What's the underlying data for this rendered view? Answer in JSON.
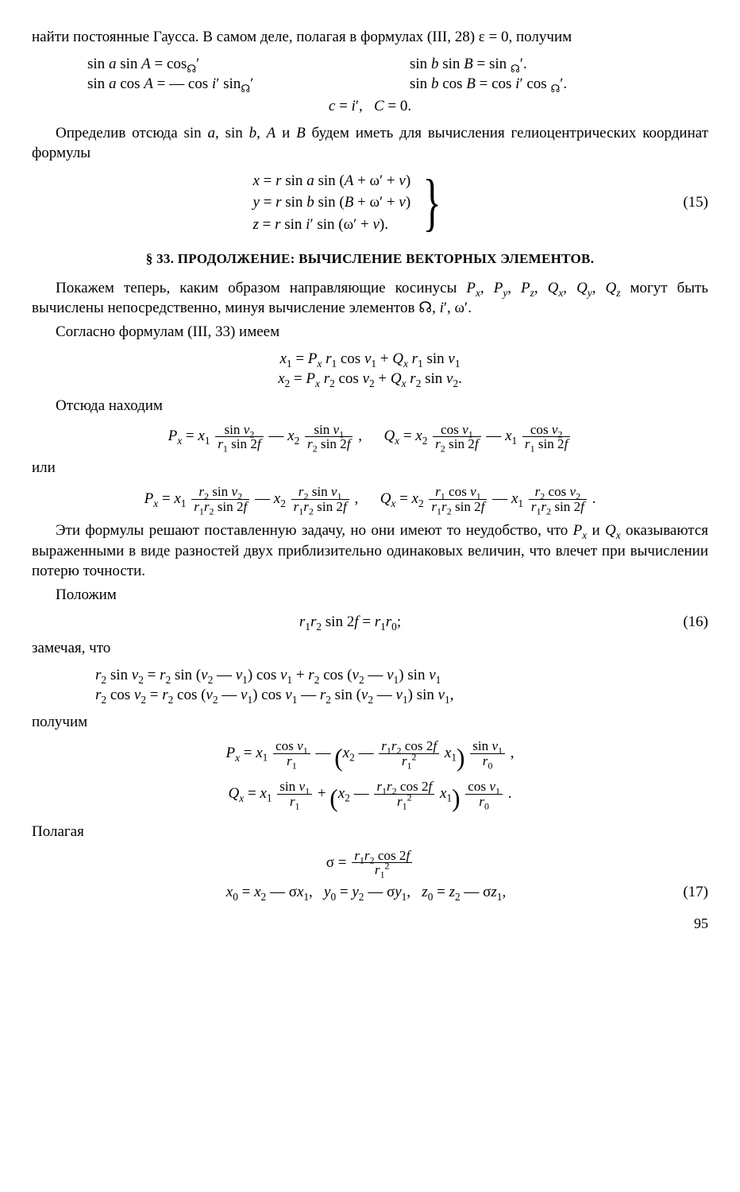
{
  "p1": "найти постоянные Гаусса. В самом деле, полагая в формулах (III, 28) ε = 0, получим",
  "eqA": {
    "l1": "sin <span class=i>a</span> sin <span class=i>A</span> = cos<sub>☊</sub>′",
    "l2": "sin <span class=i>a</span> cos <span class=i>A</span> = — cos <span class=i>i</span>′ sin<sub>☊</sub>′",
    "r1": "sin <span class=i>b</span> sin <span class=i>B</span> = sin <sub>☊</sub>′.",
    "r2": "sin <span class=i>b</span> cos <span class=i>B</span> = cos <span class=i>i</span>′ cos <sub>☊</sub>′.",
    "c": "<span class=i>c</span> = <span class=i>i</span>′,&nbsp;&nbsp;&nbsp;<span class=i>C</span> = 0."
  },
  "p2": "Определив отсюда sin <span class=i>a</span>, sin <span class=i>b</span>, <span class=i>A</span> и <span class=i>B</span> будем иметь для вычисления гелиоцентрических координат формулы",
  "eq15": {
    "l1": "<span class=i>x</span> = <span class=i>r</span> sin <span class=i>a</span> sin (<span class=i>A</span> + ω′ + <span class=i>v</span>)",
    "l2": "<span class=i>y</span> = <span class=i>r</span> sin <span class=i>b</span> sin (<span class=i>B</span> + ω′ + <span class=i>v</span>)",
    "l3": "<span class=i>z</span> = <span class=i>r</span> sin <span class=i>i</span>′ sin (ω′ + <span class=i>v</span>).",
    "num": "(15)"
  },
  "section": "§ 33. ПРОДОЛЖЕНИЕ: ВЫЧИСЛЕНИЕ ВЕКТОРНЫХ ЭЛЕМЕНТОВ.",
  "p3": "Покажем теперь, каким образом направляющие косинусы <span class=i>P<sub>x</sub></span>, <span class=i>P<sub>y</sub></span>, <span class=i>P<sub>z</sub></span>, <span class=i>Q<sub>x</sub></span>, <span class=i>Q<sub>y</sub></span>, <span class=i>Q<sub>z</sub></span> могут быть вычислены непосредственно, минуя вычисление элементов ☊, <span class=i>i</span>′, ω′.",
  "p4": "Согласно формулам (III, 33) имеем",
  "eqB": {
    "l1": "<span class=i>x</span><sub>1</sub> = <span class=i>P<sub>x</sub> r</span><sub>1</sub> cos <span class=i>v</span><sub>1</sub> + <span class=i>Q<sub>x</sub> r</span><sub>1</sub> sin <span class=i>v</span><sub>1</sub>",
    "l2": "<span class=i>x</span><sub>2</sub> = <span class=i>P<sub>x</sub> r</span><sub>2</sub> cos <span class=i>v</span><sub>2</sub> + <span class=i>Q<sub>x</sub> r</span><sub>2</sub> sin <span class=i>v</span><sub>2</sub>."
  },
  "p5": "Отсюда находим",
  "eqC": {
    "px": "<span class=i>P<sub>x</sub></span> = <span class=i>x</span><sub>1</sub> <span class=frac><span class=top>sin <span class=i>v</span><sub>2</sub></span><span class=bot><span class=i>r</span><sub>1</sub> sin 2<span class=i>f</span></span></span> — <span class=i>x</span><sub>2</sub> <span class=frac><span class=top>sin <span class=i>v</span><sub>1</sub></span><span class=bot><span class=i>r</span><sub>2</sub> sin 2<span class=i>f</span></span></span> ,",
    "qx": "<span class=i>Q<sub>x</sub></span> = <span class=i>x</span><sub>2</sub> <span class=frac><span class=top>cos <span class=i>v</span><sub>1</sub></span><span class=bot><span class=i>r</span><sub>2</sub> sin 2<span class=i>f</span></span></span> — <span class=i>x</span><sub>1</sub> <span class=frac><span class=top>cos <span class=i>v</span><sub>2</sub></span><span class=bot><span class=i>r</span><sub>1</sub> sin 2<span class=i>f</span></span></span>"
  },
  "p6": "или",
  "eqD": {
    "px": "<span class=i>P<sub>x</sub></span> = <span class=i>x</span><sub>1</sub> <span class=frac><span class=top><span class=i>r</span><sub>2</sub> sin <span class=i>v</span><sub>2</sub></span><span class=bot><span class=i>r</span><sub>1</sub><span class=i>r</span><sub>2</sub> sin 2<span class=i>f</span></span></span> — <span class=i>x</span><sub>2</sub> <span class=frac><span class=top><span class=i>r</span><sub>2</sub> sin <span class=i>v</span><sub>1</sub></span><span class=bot><span class=i>r</span><sub>1</sub><span class=i>r</span><sub>2</sub> sin 2<span class=i>f</span></span></span> ,",
    "qx": "<span class=i>Q<sub>x</sub></span> = <span class=i>x</span><sub>2</sub> <span class=frac><span class=top><span class=i>r</span><sub>1</sub> cos <span class=i>v</span><sub>1</sub></span><span class=bot><span class=i>r</span><sub>1</sub><span class=i>r</span><sub>2</sub> sin 2<span class=i>f</span></span></span> — <span class=i>x</span><sub>1</sub> <span class=frac><span class=top><span class=i>r</span><sub>2</sub> cos <span class=i>v</span><sub>2</sub></span><span class=bot><span class=i>r</span><sub>1</sub><span class=i>r</span><sub>2</sub> sin 2<span class=i>f</span></span></span> ."
  },
  "p7": "Эти формулы решают поставленную задачу, но они имеют то неудобство, что <span class=i>P<sub>x</sub></span> и <span class=i>Q<sub>x</sub></span> оказываются выраженными в виде разностей двух приблизительно одинаковых величин, что влечет при вычислении потерю точности.",
  "p8": "Положим",
  "eq16": {
    "text": "<span class=i>r</span><sub>1</sub><span class=i>r</span><sub>2</sub> sin 2<span class=i>f</span> = <span class=i>r</span><sub>1</sub><span class=i>r</span><sub>0</sub>;",
    "num": "(16)"
  },
  "p9": "замечая, что",
  "eqE": {
    "l1": "<span class=i>r</span><sub>2</sub> sin <span class=i>v</span><sub>2</sub> = <span class=i>r</span><sub>2</sub> sin (<span class=i>v</span><sub>2</sub> — <span class=i>v</span><sub>1</sub>) cos <span class=i>v</span><sub>1</sub> + <span class=i>r</span><sub>2</sub> cos (<span class=i>v</span><sub>2</sub> — <span class=i>v</span><sub>1</sub>) sin <span class=i>v</span><sub>1</sub>",
    "l2": "<span class=i>r</span><sub>2</sub> cos <span class=i>v</span><sub>2</sub> = <span class=i>r</span><sub>2</sub> cos (<span class=i>v</span><sub>2</sub> — <span class=i>v</span><sub>1</sub>) cos <span class=i>v</span><sub>1</sub> — <span class=i>r</span><sub>2</sub> sin (<span class=i>v</span><sub>2</sub> — <span class=i>v</span><sub>1</sub>) sin <span class=i>v</span><sub>1</sub>,"
  },
  "p10": "получим",
  "eqF": {
    "l1": "<span class=i>P<sub>x</sub></span> = <span class=i>x</span><sub>1</sub> <span class=frac><span class=top>cos <span class=i>v</span><sub>1</sub></span><span class=bot><span class=i>r</span><sub>1</sub></span></span> — <span class=bigp>(</span><span class=i>x</span><sub>2</sub> — <span class=frac><span class=top><span class=i>r</span><sub>1</sub><span class=i>r</span><sub>2</sub> cos 2<span class=i>f</span></span><span class=bot><span class=i>r</span><sub>1</sub><sup>2</sup></span></span> <span class=i>x</span><sub>1</sub><span class=bigp>)</span> <span class=frac><span class=top>sin <span class=i>v</span><sub>1</sub></span><span class=bot><span class=i>r</span><sub>0</sub></span></span> ,",
    "l2": "<span class=i>Q<sub>x</sub></span> = <span class=i>x</span><sub>1</sub> <span class=frac><span class=top>sin <span class=i>v</span><sub>1</sub></span><span class=bot><span class=i>r</span><sub>1</sub></span></span> + <span class=bigp>(</span><span class=i>x</span><sub>2</sub> — <span class=frac><span class=top><span class=i>r</span><sub>1</sub><span class=i>r</span><sub>2</sub> cos 2<span class=i>f</span></span><span class=bot><span class=i>r</span><sub>1</sub><sup>2</sup></span></span> <span class=i>x</span><sub>1</sub><span class=bigp>)</span> <span class=frac><span class=top>cos <span class=i>v</span><sub>1</sub></span><span class=bot><span class=i>r</span><sub>0</sub></span></span> ."
  },
  "p11": "Полагая",
  "eqG": {
    "sigma": "σ = <span class=frac><span class=top><span class=i>r</span><sub>1</sub><span class=i>r</span><sub>2</sub> cos 2<span class=i>f</span></span><span class=bot><span class=i>r</span><sub>1</sub><sup>2</sup></span></span>",
    "xyz": "<span class=i>x</span><sub>0</sub> = <span class=i>x</span><sub>2</sub> — σ<span class=i>x</span><sub>1</sub>,&nbsp;&nbsp;&nbsp;<span class=i>y</span><sub>0</sub> = <span class=i>y</span><sub>2</sub> — σ<span class=i>y</span><sub>1</sub>,&nbsp;&nbsp;&nbsp;<span class=i>z</span><sub>0</sub> = <span class=i>z</span><sub>2</sub> — σ<span class=i>z</span><sub>1</sub>,",
    "num": "(17)"
  },
  "pagenum": "95"
}
